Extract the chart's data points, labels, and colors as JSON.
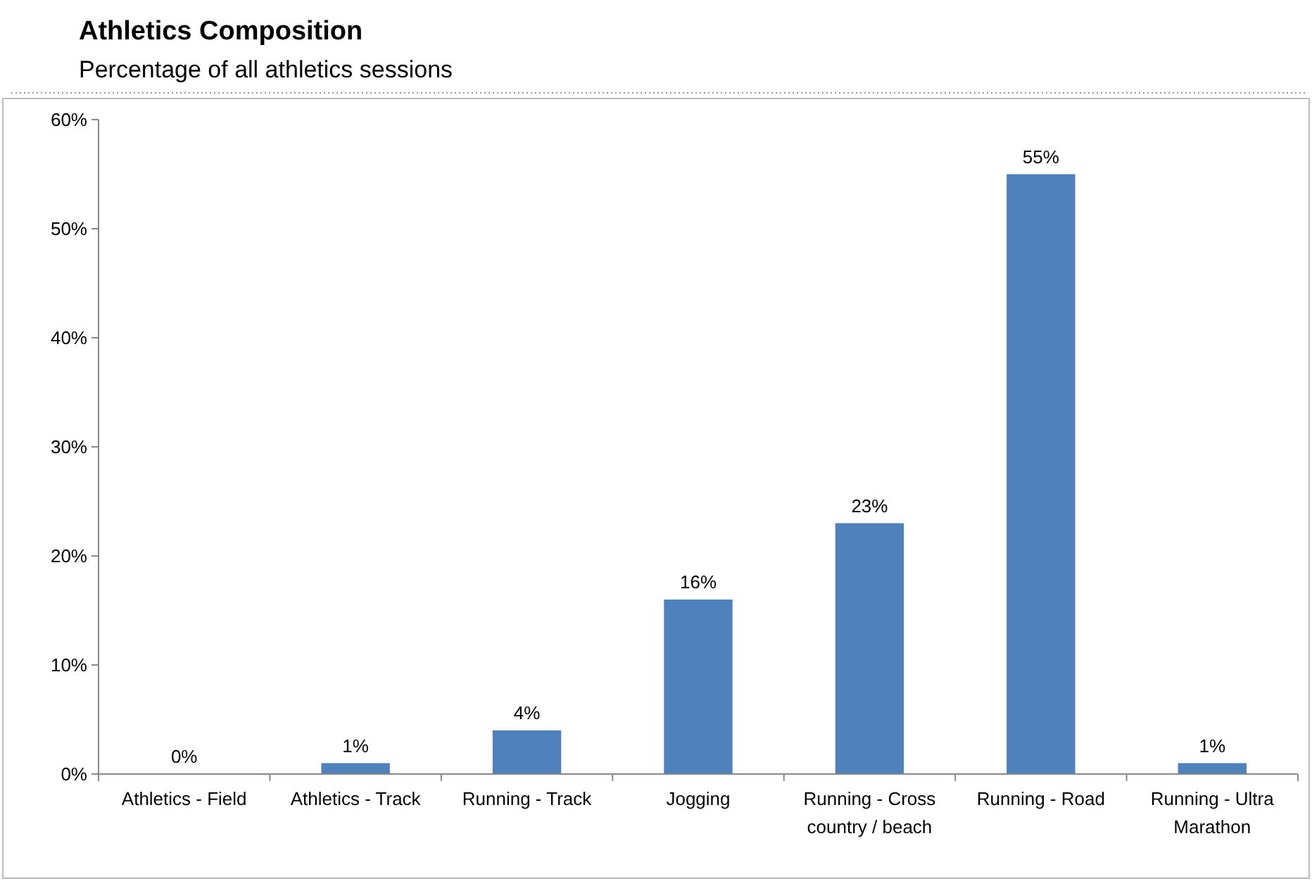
{
  "chart_data": {
    "type": "bar",
    "title": "Athletics Composition",
    "subtitle": "Percentage of all athletics sessions",
    "categories": [
      "Athletics - Field",
      "Athletics - Track",
      "Running - Track",
      "Jogging",
      "Running - Cross country / beach",
      "Running - Road",
      "Running - Ultra Marathon"
    ],
    "values": [
      0,
      1,
      4,
      16,
      23,
      55,
      1
    ],
    "value_labels": [
      "0%",
      "1%",
      "4%",
      "16%",
      "23%",
      "55%",
      "1%"
    ],
    "color": "#4f81bd",
    "ylim": [
      0,
      60
    ],
    "yticks": [
      {
        "value": 0,
        "label": "0%"
      },
      {
        "value": 10,
        "label": "10%"
      },
      {
        "value": 20,
        "label": "20%"
      },
      {
        "value": 30,
        "label": "30%"
      },
      {
        "value": 40,
        "label": "40%"
      },
      {
        "value": 50,
        "label": "50%"
      },
      {
        "value": 60,
        "label": "60%"
      }
    ],
    "grid": false
  }
}
